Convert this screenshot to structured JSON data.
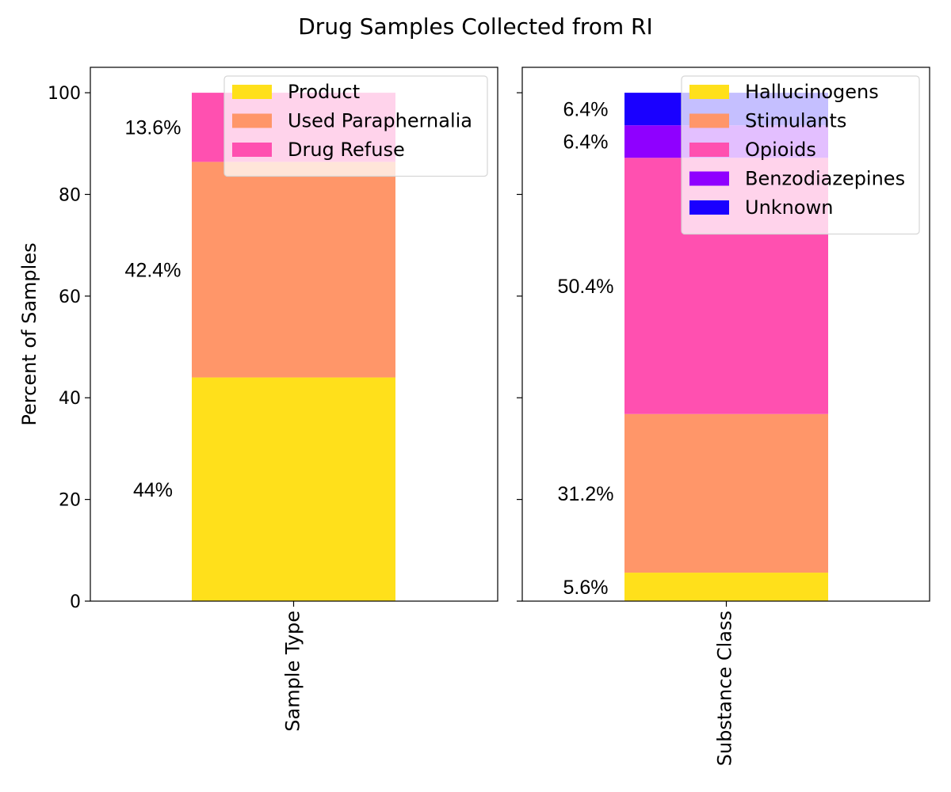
{
  "title": "Drug Samples Collected from RI",
  "chart_data": [
    {
      "type": "bar",
      "stacked": true,
      "categories": [
        "Sample Type"
      ],
      "xlabel": "Sample Type",
      "ylabel": "Percent of Samples",
      "ylim": [
        0,
        105
      ],
      "yticks": [
        0,
        20,
        40,
        60,
        80,
        100
      ],
      "legend_position": "upper-right",
      "series": [
        {
          "name": "Product",
          "values": [
            44
          ],
          "label": "44%",
          "color": "#ffe01b"
        },
        {
          "name": "Used Paraphernalia",
          "values": [
            42.4
          ],
          "label": "42.4%",
          "color": "#ff9669"
        },
        {
          "name": "Drug Refuse",
          "values": [
            13.6
          ],
          "label": "13.6%",
          "color": "#ff50b0"
        }
      ]
    },
    {
      "type": "bar",
      "stacked": true,
      "categories": [
        "Substance Class"
      ],
      "xlabel": "Substance Class",
      "ylabel": "",
      "ylim": [
        0,
        105
      ],
      "yticks": [
        0,
        20,
        40,
        60,
        80,
        100
      ],
      "legend_position": "upper-right",
      "series": [
        {
          "name": "Hallucinogens",
          "values": [
            5.6
          ],
          "label": "5.6%",
          "color": "#ffe01b"
        },
        {
          "name": "Stimulants",
          "values": [
            31.2
          ],
          "label": "31.2%",
          "color": "#ff9669"
        },
        {
          "name": "Opioids",
          "values": [
            50.4
          ],
          "label": "50.4%",
          "color": "#ff50b0"
        },
        {
          "name": "Benzodiazepines",
          "values": [
            6.4
          ],
          "label": "6.4%",
          "color": "#8f00ff"
        },
        {
          "name": "Unknown",
          "values": [
            6.4
          ],
          "label": "6.4%",
          "color": "#1a00ff"
        }
      ]
    }
  ]
}
